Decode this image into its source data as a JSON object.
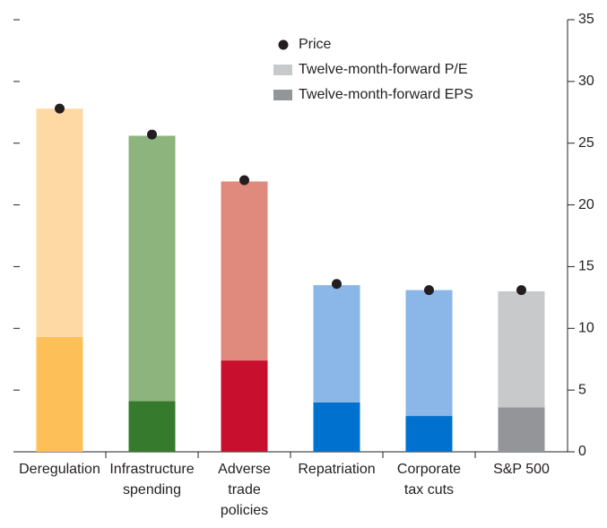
{
  "chart_data": {
    "type": "bar",
    "stacked": true,
    "categories": [
      "Deregulation",
      "Infrastructure\nspending",
      "Adverse\ntrade\npolicies",
      "Repatriation",
      "Corporate\ntax cuts",
      "S&P 500"
    ],
    "series": [
      {
        "name": "Twelve-month-forward EPS",
        "color": "#939598",
        "colors": [
          "#fdbf57",
          "#367a2e",
          "#c8102e",
          "#0071ce",
          "#0071ce",
          "#939598"
        ],
        "values": [
          9.3,
          4.1,
          7.4,
          4.0,
          2.9,
          3.6
        ]
      },
      {
        "name": "Twelve-month-forward P/E",
        "color": "#c8c9cb",
        "colors": [
          "#fed9a3",
          "#8db47c",
          "#e08a7e",
          "#8ab6e8",
          "#8ab6e8",
          "#c8c9cb"
        ],
        "values": [
          18.5,
          21.5,
          14.5,
          9.5,
          10.2,
          9.4
        ]
      },
      {
        "name": "Price",
        "type": "scatter",
        "color": "#231f20",
        "values": [
          27.8,
          25.7,
          22.0,
          13.6,
          13.1,
          13.1
        ]
      }
    ],
    "ylim": [
      0,
      35
    ],
    "yticks": [
      0,
      5,
      10,
      15,
      20,
      25,
      30,
      35
    ],
    "axis_side": "right"
  }
}
